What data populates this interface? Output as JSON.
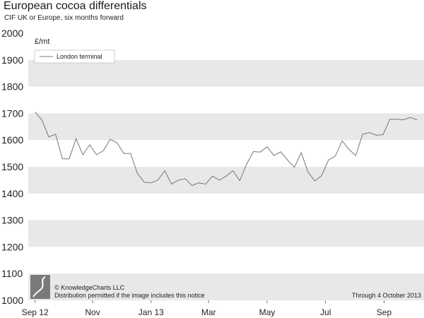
{
  "chart_data": {
    "type": "line",
    "title": "European cocoa differentials",
    "subtitle": "CIF UK or Europe, six months forward",
    "ylabel": "£/mt",
    "xlabel": "",
    "ylim": [
      1000,
      2000
    ],
    "yticks": [
      1000,
      1100,
      1200,
      1300,
      1400,
      1500,
      1600,
      1700,
      1800,
      1900,
      2000
    ],
    "xticks": [
      {
        "label": "Sep 12",
        "date": "2012-09-07"
      },
      {
        "label": "Nov",
        "date": "2012-11-05"
      },
      {
        "label": "Jan 13",
        "date": "2013-01-04"
      },
      {
        "label": "Mar",
        "date": "2013-03-04"
      },
      {
        "label": "May",
        "date": "2013-05-03"
      },
      {
        "label": "Jul",
        "date": "2013-07-02"
      },
      {
        "label": "Sep",
        "date": "2013-08-31"
      }
    ],
    "xlim": [
      "2012-08-31",
      "2013-10-11"
    ],
    "grid": "alternating-bands",
    "legend": "top-left",
    "series": [
      {
        "name": "London terminal",
        "color": "#777777",
        "points": [
          [
            "2012-09-07",
            1705
          ],
          [
            "2012-09-14",
            1675
          ],
          [
            "2012-09-21",
            1612
          ],
          [
            "2012-09-28",
            1622
          ],
          [
            "2012-10-05",
            1530
          ],
          [
            "2012-10-12",
            1530
          ],
          [
            "2012-10-19",
            1605
          ],
          [
            "2012-10-26",
            1545
          ],
          [
            "2012-11-02",
            1582
          ],
          [
            "2012-11-09",
            1545
          ],
          [
            "2012-11-16",
            1560
          ],
          [
            "2012-11-23",
            1603
          ],
          [
            "2012-11-30",
            1590
          ],
          [
            "2012-12-07",
            1550
          ],
          [
            "2012-12-14",
            1550
          ],
          [
            "2012-12-21",
            1475
          ],
          [
            "2012-12-28",
            1442
          ],
          [
            "2013-01-04",
            1440
          ],
          [
            "2013-01-11",
            1450
          ],
          [
            "2013-01-18",
            1485
          ],
          [
            "2013-01-25",
            1435
          ],
          [
            "2013-02-01",
            1450
          ],
          [
            "2013-02-08",
            1455
          ],
          [
            "2013-02-15",
            1430
          ],
          [
            "2013-02-22",
            1440
          ],
          [
            "2013-03-01",
            1435
          ],
          [
            "2013-03-08",
            1465
          ],
          [
            "2013-03-15",
            1450
          ],
          [
            "2013-03-22",
            1465
          ],
          [
            "2013-03-29",
            1485
          ],
          [
            "2013-04-05",
            1448
          ],
          [
            "2013-04-12",
            1510
          ],
          [
            "2013-04-19",
            1557
          ],
          [
            "2013-04-26",
            1555
          ],
          [
            "2013-05-03",
            1575
          ],
          [
            "2013-05-10",
            1542
          ],
          [
            "2013-05-17",
            1556
          ],
          [
            "2013-05-24",
            1525
          ],
          [
            "2013-05-31",
            1498
          ],
          [
            "2013-06-07",
            1553
          ],
          [
            "2013-06-14",
            1480
          ],
          [
            "2013-06-21",
            1447
          ],
          [
            "2013-06-28",
            1467
          ],
          [
            "2013-07-05",
            1525
          ],
          [
            "2013-07-12",
            1540
          ],
          [
            "2013-07-19",
            1597
          ],
          [
            "2013-07-26",
            1565
          ],
          [
            "2013-08-02",
            1542
          ],
          [
            "2013-08-09",
            1622
          ],
          [
            "2013-08-16",
            1628
          ],
          [
            "2013-08-23",
            1618
          ],
          [
            "2013-08-30",
            1620
          ],
          [
            "2013-09-06",
            1678
          ],
          [
            "2013-09-13",
            1678
          ],
          [
            "2013-09-20",
            1676
          ],
          [
            "2013-09-27",
            1685
          ],
          [
            "2013-10-04",
            1676
          ]
        ]
      }
    ],
    "band_color": "#e8e8e8"
  },
  "footer": {
    "copyright": "© KnowledgeCharts LLC",
    "notice": "Distribution permitted if the image includes this notice",
    "through": "Through 4 October 2013"
  }
}
